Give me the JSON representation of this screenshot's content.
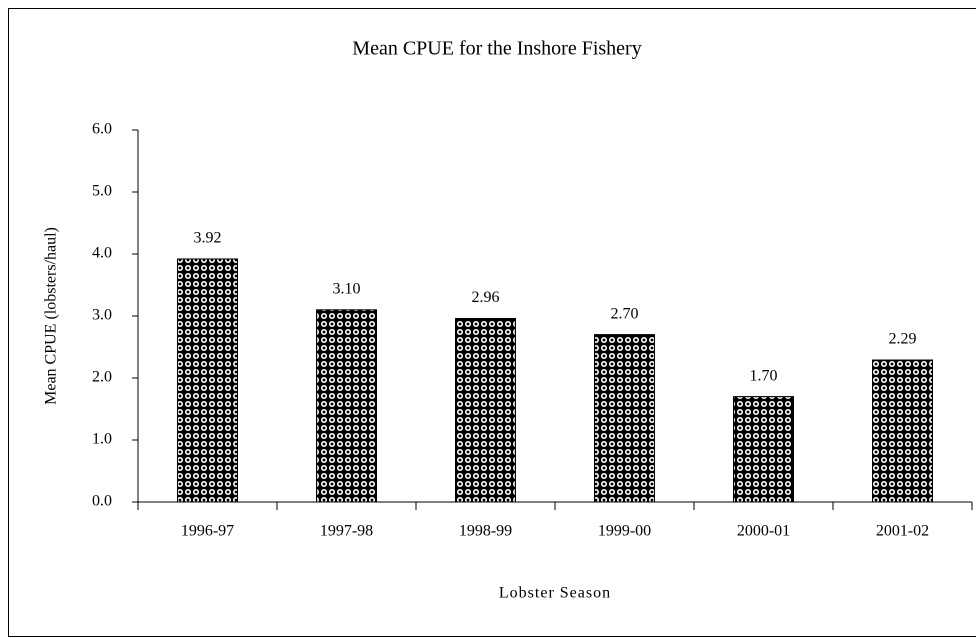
{
  "chart_data": {
    "type": "bar",
    "title": "Mean CPUE for the Inshore Fishery",
    "x_label": "Lobster Season",
    "y_label": "Mean CPUE (lobsters/haul)",
    "categories": [
      "1996-97",
      "1997-98",
      "1998-99",
      "1999-00",
      "2000-01",
      "2001-02"
    ],
    "values": [
      3.92,
      3.1,
      2.96,
      2.7,
      1.7,
      2.29
    ],
    "value_labels": [
      "3.92",
      "3.10",
      "2.96",
      "2.70",
      "1.70",
      "2.29"
    ],
    "color": "#000000",
    "ylim": [
      0,
      6
    ],
    "yticks": [
      {
        "value": 0,
        "label": "0.0"
      },
      {
        "value": 1,
        "label": "1.0"
      },
      {
        "value": 2,
        "label": "2.0"
      },
      {
        "value": 3,
        "label": "3.0"
      },
      {
        "value": 4,
        "label": "4.0"
      },
      {
        "value": 5,
        "label": "5.0"
      },
      {
        "value": 6,
        "label": "6.0"
      }
    ],
    "grid": false
  }
}
